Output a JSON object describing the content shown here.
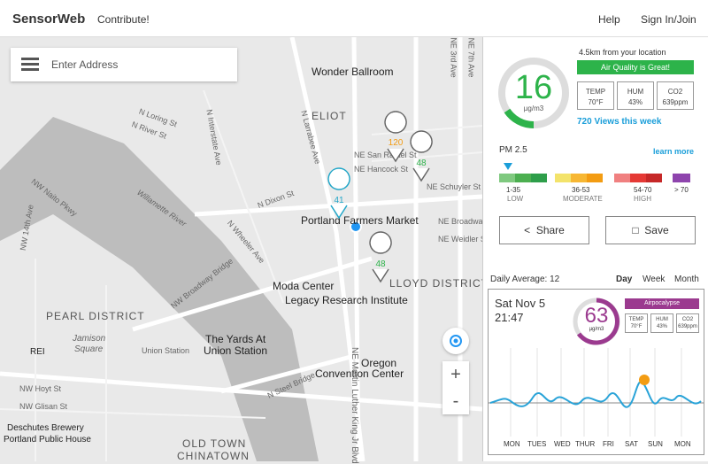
{
  "header": {
    "brand": "SensorWeb",
    "contribute": "Contribute!",
    "nav": [
      "Help",
      "Sign In/Join"
    ]
  },
  "search": {
    "placeholder": "Enter Address"
  },
  "map": {
    "labels": [
      "Wonder Ballroom",
      "ELIOT",
      "NE San Rafael St",
      "NE Hancock St",
      "NE Schuyler St",
      "Portland Farmers Market",
      "N Dixon St",
      "Moda Center",
      "Legacy Research Institute",
      "LLOYD DISTRICT",
      "PEARL DISTRICT",
      "Jamison",
      "Square",
      "The Yards At",
      "Union Station",
      "Union Station",
      "Oregon",
      "Convention Center",
      "REI",
      "NW Hoyt St",
      "NW Glisan St",
      "Deschutes Brewery",
      "Portland Public House",
      "OLD TOWN",
      "CHINATOWN",
      "NE Martin Luther King Jr Blvd",
      "Willamette River",
      "NW Naito Pkwy",
      "NW Broadway Bridge",
      "N Interstate Ave",
      "N Loring St",
      "N River St",
      "NW 14th Ave",
      "NE Broadway",
      "N Wheeler Ave",
      "N Steel Bridge",
      "NE Weidler St",
      "NE 3rd Ave",
      "NE 7th Ave",
      "N Larrabee Ave"
    ],
    "markers": [
      120,
      41,
      48,
      48
    ]
  },
  "current": {
    "distance": "4.5km from your location",
    "status": "Air Quality is Great!",
    "reading": 16,
    "unit": "µg/m3",
    "stats": [
      {
        "label": "TEMP",
        "value": "70°F"
      },
      {
        "label": "HUM",
        "value": "43%"
      },
      {
        "label": "CO2",
        "value": "639ppm"
      }
    ],
    "views": "720 Views this week",
    "pollutant": "PM 2.5",
    "learn_more": "learn more",
    "ranges": [
      "1-35",
      "36-53",
      "54-70",
      "> 70"
    ],
    "levels": [
      "LOW",
      "MODERATE",
      "HIGH"
    ],
    "buttons": [
      "Share",
      "Save"
    ]
  },
  "history": {
    "daily_average": "Daily Average: 12",
    "tabs": [
      "Day",
      "Week",
      "Month"
    ],
    "date": "Sat Nov 5",
    "time": "21:47",
    "reading": 63,
    "unit": "µg/m3",
    "badge": "Airpocalypse",
    "stats": [
      {
        "label": "TEMP",
        "value": "70°F"
      },
      {
        "label": "HUM",
        "value": "43%"
      },
      {
        "label": "CO2",
        "value": "639ppm"
      }
    ],
    "days": [
      "MON",
      "TUES",
      "WED",
      "THUR",
      "FRI",
      "SAT",
      "SUN",
      "MON"
    ]
  }
}
